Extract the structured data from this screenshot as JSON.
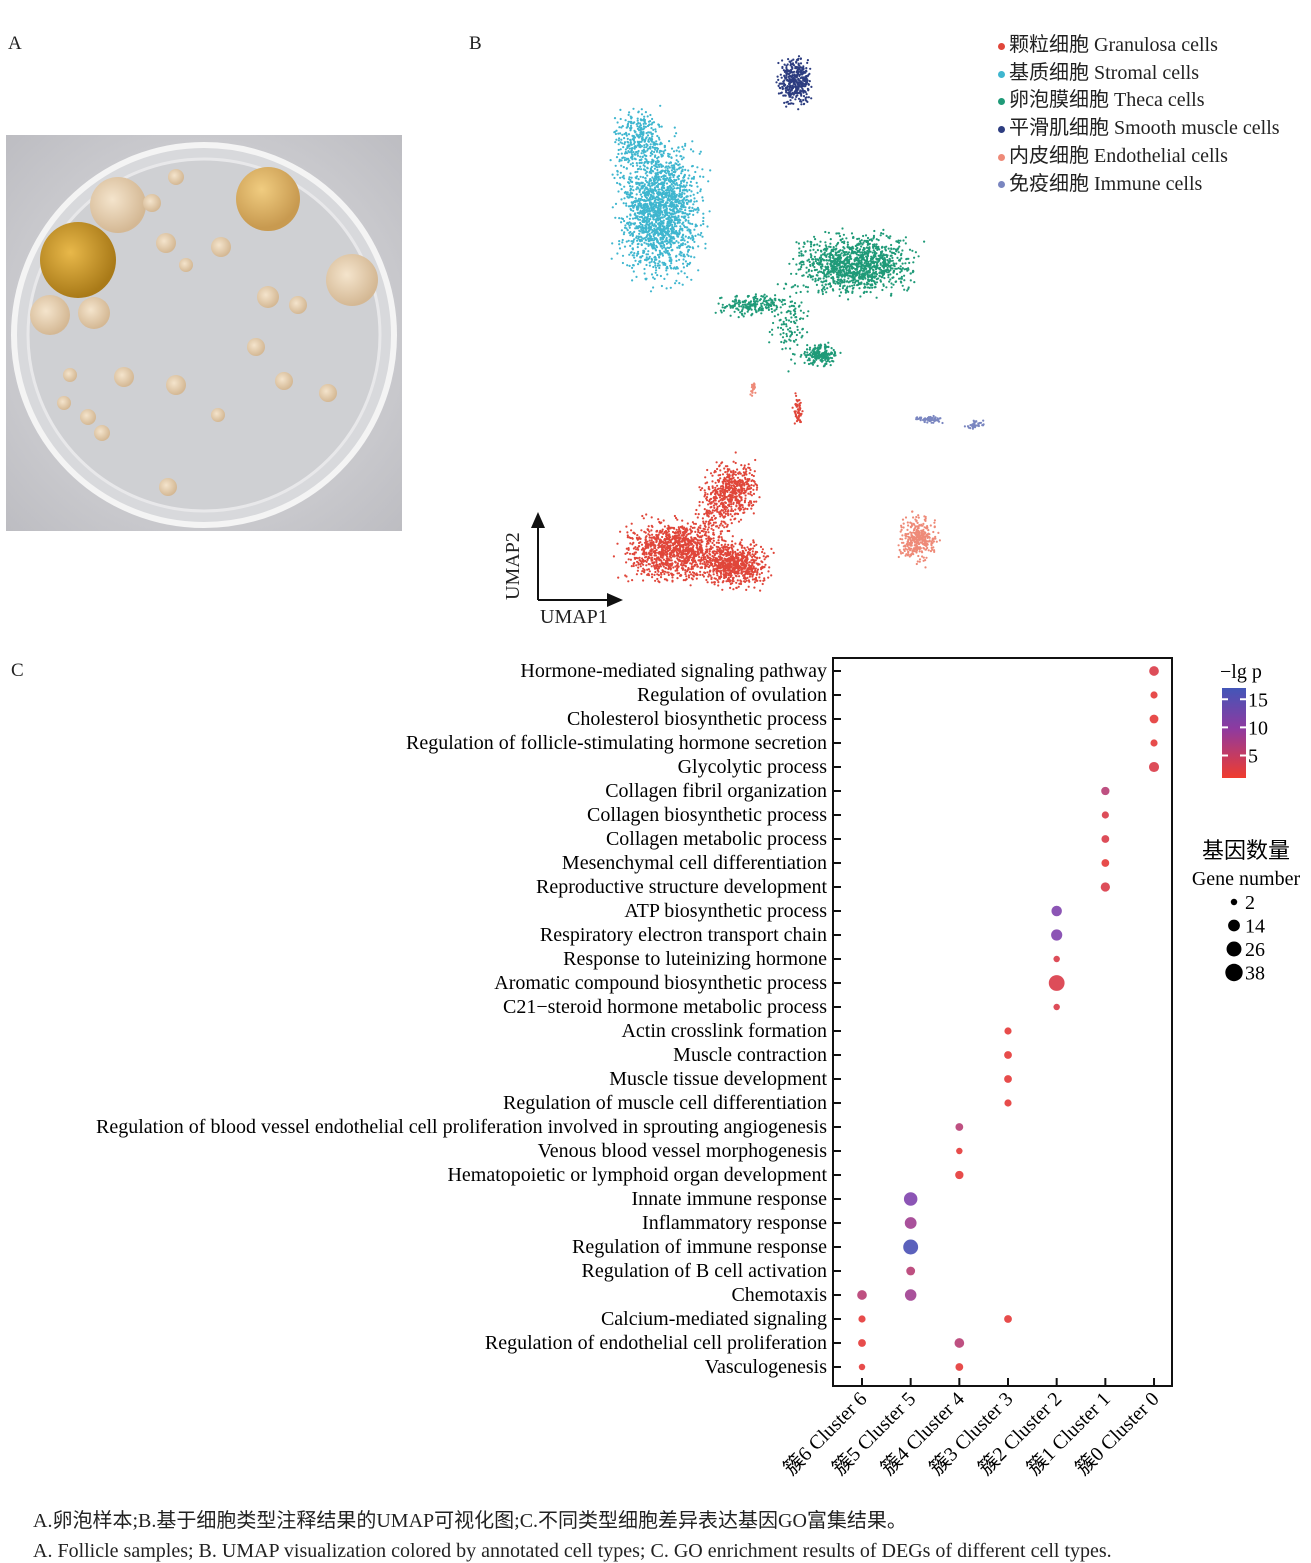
{
  "panels": {
    "a": "A",
    "b": "B",
    "c": "C"
  },
  "umap": {
    "x_label": "UMAP1",
    "y_label": "UMAP2",
    "legend": [
      {
        "label": "颗粒细胞 Granulosa cells",
        "color": "#e0463a"
      },
      {
        "label": "基质细胞 Stromal cells",
        "color": "#3fb6cf"
      },
      {
        "label": "卵泡膜细胞 Theca cells",
        "color": "#1f9a78"
      },
      {
        "label": "平滑肌细胞 Smooth muscle cells",
        "color": "#2d3d80"
      },
      {
        "label": "内皮细胞 Endothelial cells",
        "color": "#ee8a78"
      },
      {
        "label": "免疫细胞 Immune cells",
        "color": "#7a86c0"
      }
    ]
  },
  "chart_data": {
    "type": "scatter",
    "subtype": "dot-plot",
    "categories_x": [
      "簇6 Cluster 6",
      "簇5 Cluster 5",
      "簇4 Cluster 4",
      "簇3 Cluster 3",
      "簇2 Cluster 2",
      "簇1 Cluster 1",
      "簇0 Cluster 0"
    ],
    "categories_y": [
      "Hormone-mediated signaling pathway",
      "Regulation of ovulation",
      "Cholesterol biosynthetic process",
      "Regulation of follicle-stimulating hormone secretion",
      "Glycolytic process",
      "Collagen fibril organization",
      "Collagen biosynthetic process",
      "Collagen metabolic process",
      "Mesenchymal cell differentiation",
      "Reproductive structure development",
      "ATP biosynthetic process",
      "Respiratory electron transport chain",
      "Response to luteinizing hormone",
      "Aromatic compound biosynthetic process",
      "C21−steroid hormone metabolic process",
      "Actin crosslink formation",
      "Muscle contraction",
      "Muscle tissue development",
      "Regulation of muscle cell differentiation",
      "Regulation of blood vessel endothelial cell proliferation involved in sprouting angiogenesis",
      "Venous blood vessel morphogenesis",
      "Hematopoietic or lymphoid organ development",
      "Innate immune response",
      "Inflammatory response",
      "Regulation of immune response",
      "Regulation of B cell activation",
      "Chemotaxis",
      "Calcium-mediated signaling",
      "Regulation of endothelial cell proliferation",
      "Vasculogenesis"
    ],
    "points": [
      {
        "x": "簇0 Cluster 0",
        "y": 0,
        "gene_number": 8,
        "neg_lg_p": 3
      },
      {
        "x": "簇0 Cluster 0",
        "y": 1,
        "gene_number": 3,
        "neg_lg_p": 2
      },
      {
        "x": "簇0 Cluster 0",
        "y": 2,
        "gene_number": 6,
        "neg_lg_p": 2
      },
      {
        "x": "簇0 Cluster 0",
        "y": 3,
        "gene_number": 3,
        "neg_lg_p": 2
      },
      {
        "x": "簇0 Cluster 0",
        "y": 4,
        "gene_number": 9,
        "neg_lg_p": 3
      },
      {
        "x": "簇1 Cluster 1",
        "y": 5,
        "gene_number": 5,
        "neg_lg_p": 6
      },
      {
        "x": "簇1 Cluster 1",
        "y": 6,
        "gene_number": 3,
        "neg_lg_p": 3
      },
      {
        "x": "簇1 Cluster 1",
        "y": 7,
        "gene_number": 4,
        "neg_lg_p": 3
      },
      {
        "x": "簇1 Cluster 1",
        "y": 8,
        "gene_number": 4,
        "neg_lg_p": 2
      },
      {
        "x": "簇1 Cluster 1",
        "y": 9,
        "gene_number": 7,
        "neg_lg_p": 3
      },
      {
        "x": "簇2 Cluster 2",
        "y": 10,
        "gene_number": 10,
        "neg_lg_p": 11
      },
      {
        "x": "簇2 Cluster 2",
        "y": 11,
        "gene_number": 12,
        "neg_lg_p": 11
      },
      {
        "x": "簇2 Cluster 2",
        "y": 12,
        "gene_number": 2,
        "neg_lg_p": 3
      },
      {
        "x": "簇2 Cluster 2",
        "y": 13,
        "gene_number": 30,
        "neg_lg_p": 3
      },
      {
        "x": "簇2 Cluster 2",
        "y": 14,
        "gene_number": 2,
        "neg_lg_p": 3
      },
      {
        "x": "簇3 Cluster 3",
        "y": 15,
        "gene_number": 3,
        "neg_lg_p": 2
      },
      {
        "x": "簇3 Cluster 3",
        "y": 16,
        "gene_number": 4,
        "neg_lg_p": 2
      },
      {
        "x": "簇3 Cluster 3",
        "y": 17,
        "gene_number": 4,
        "neg_lg_p": 2
      },
      {
        "x": "簇3 Cluster 3",
        "y": 18,
        "gene_number": 3,
        "neg_lg_p": 2
      },
      {
        "x": "簇3 Cluster 3",
        "y": 27,
        "gene_number": 4,
        "neg_lg_p": 2
      },
      {
        "x": "簇4 Cluster 4",
        "y": 19,
        "gene_number": 4,
        "neg_lg_p": 6
      },
      {
        "x": "簇4 Cluster 4",
        "y": 20,
        "gene_number": 2,
        "neg_lg_p": 2
      },
      {
        "x": "簇4 Cluster 4",
        "y": 21,
        "gene_number": 5,
        "neg_lg_p": 2
      },
      {
        "x": "簇4 Cluster 4",
        "y": 28,
        "gene_number": 8,
        "neg_lg_p": 6
      },
      {
        "x": "簇4 Cluster 4",
        "y": 29,
        "gene_number": 4,
        "neg_lg_p": 2
      },
      {
        "x": "簇5 Cluster 5",
        "y": 22,
        "gene_number": 20,
        "neg_lg_p": 11
      },
      {
        "x": "簇5 Cluster 5",
        "y": 23,
        "gene_number": 14,
        "neg_lg_p": 8
      },
      {
        "x": "簇5 Cluster 5",
        "y": 24,
        "gene_number": 26,
        "neg_lg_p": 16
      },
      {
        "x": "簇5 Cluster 5",
        "y": 25,
        "gene_number": 6,
        "neg_lg_p": 6
      },
      {
        "x": "簇5 Cluster 5",
        "y": 26,
        "gene_number": 13,
        "neg_lg_p": 8
      },
      {
        "x": "簇6 Cluster 6",
        "y": 26,
        "gene_number": 8,
        "neg_lg_p": 6
      },
      {
        "x": "簇6 Cluster 6",
        "y": 27,
        "gene_number": 3,
        "neg_lg_p": 2
      },
      {
        "x": "簇6 Cluster 6",
        "y": 28,
        "gene_number": 4,
        "neg_lg_p": 2
      },
      {
        "x": "簇6 Cluster 6",
        "y": 29,
        "gene_number": 2,
        "neg_lg_p": 2
      }
    ],
    "color_legend": {
      "title": "−lg p",
      "ticks": [
        15,
        10,
        5
      ],
      "range": [
        1,
        17
      ],
      "colors": [
        "#f03c2e",
        "#8e44ad",
        "#4356b8"
      ]
    },
    "size_legend": {
      "title_cn": "基因数量",
      "title_en": "Gene number",
      "values": [
        2,
        14,
        26,
        38
      ]
    }
  },
  "caption": {
    "cn": "A.卵泡样本;B.基于细胞类型注释结果的UMAP可视化图;C.不同类型细胞差异表达基因GO富集结果。",
    "en": "A. Follicle samples; B. UMAP visualization colored by annotated cell types; C. GO enrichment results of DEGs of different cell types."
  }
}
